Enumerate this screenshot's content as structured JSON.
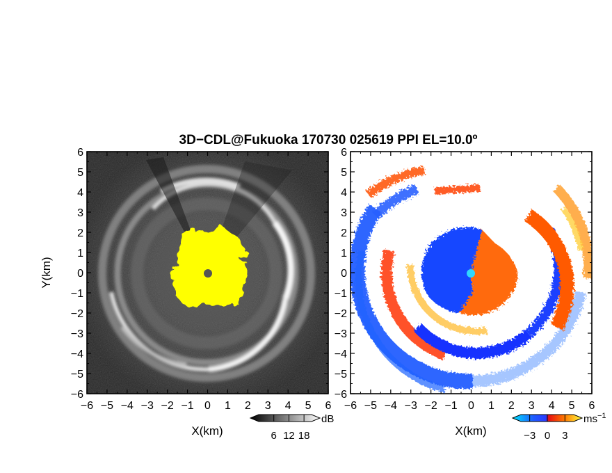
{
  "chart_data": {
    "type": "heatmap",
    "title": "3D−CDL@Fukuoka 170730 025619 PPI EL=10.0º",
    "panels": [
      {
        "id": "snr",
        "xlabel": "X(km)",
        "ylabel": "Y(km)",
        "xlim": [
          -6,
          6
        ],
        "ylim": [
          -6,
          6
        ],
        "xticks": [
          "−6",
          "−5",
          "−4",
          "−3",
          "−2",
          "−1",
          "0",
          "1",
          "2",
          "3",
          "4",
          "5",
          "6"
        ],
        "yticks": [
          "6",
          "5",
          "4",
          "3",
          "2",
          "1",
          "0",
          "−1",
          "−2",
          "−3",
          "−4",
          "−5",
          "−6"
        ],
        "colorbar": {
          "unit": "dB",
          "ticks": [
            "6",
            "12",
            "18"
          ],
          "range": [
            0,
            21
          ],
          "colormap": "grayscale"
        },
        "features": {
          "background_level": "dark gray noise",
          "rings_km": [
            2.1,
            3.5,
            4.3,
            5.1
          ],
          "saturated_region": {
            "color": "#ffff00",
            "center_km": [
              0.2,
              0.2
            ],
            "radius_km": 1.7
          },
          "radar_site_km": [
            0,
            0
          ]
        }
      },
      {
        "id": "doppler_velocity",
        "xlabel": "X(km)",
        "ylabel": "",
        "xlim": [
          -6,
          6
        ],
        "ylim": [
          -6,
          6
        ],
        "xticks": [
          "−6",
          "−5",
          "−4",
          "−3",
          "−2",
          "−1",
          "0",
          "1",
          "2",
          "3",
          "4",
          "5",
          "6"
        ],
        "yticks": [
          "6",
          "5",
          "4",
          "3",
          "2",
          "1",
          "0",
          "−1",
          "−2",
          "−3",
          "−4",
          "−5",
          "−6"
        ],
        "colorbar": {
          "unit": "ms",
          "unit_exponent": "−1",
          "ticks": [
            "−3",
            "0",
            "3"
          ],
          "range": [
            -4.5,
            4.5
          ],
          "colormap": "cyan-blue-red-orange-yellow"
        },
        "features": {
          "negative_color": "#1a4cff",
          "positive_color": "#ff5a00",
          "center_disk_radius_km": 2.3,
          "spiral_bands_km": [
            2.5,
            3.6,
            4.6,
            5.5
          ],
          "radar_site_km": [
            0,
            0
          ]
        }
      }
    ]
  }
}
